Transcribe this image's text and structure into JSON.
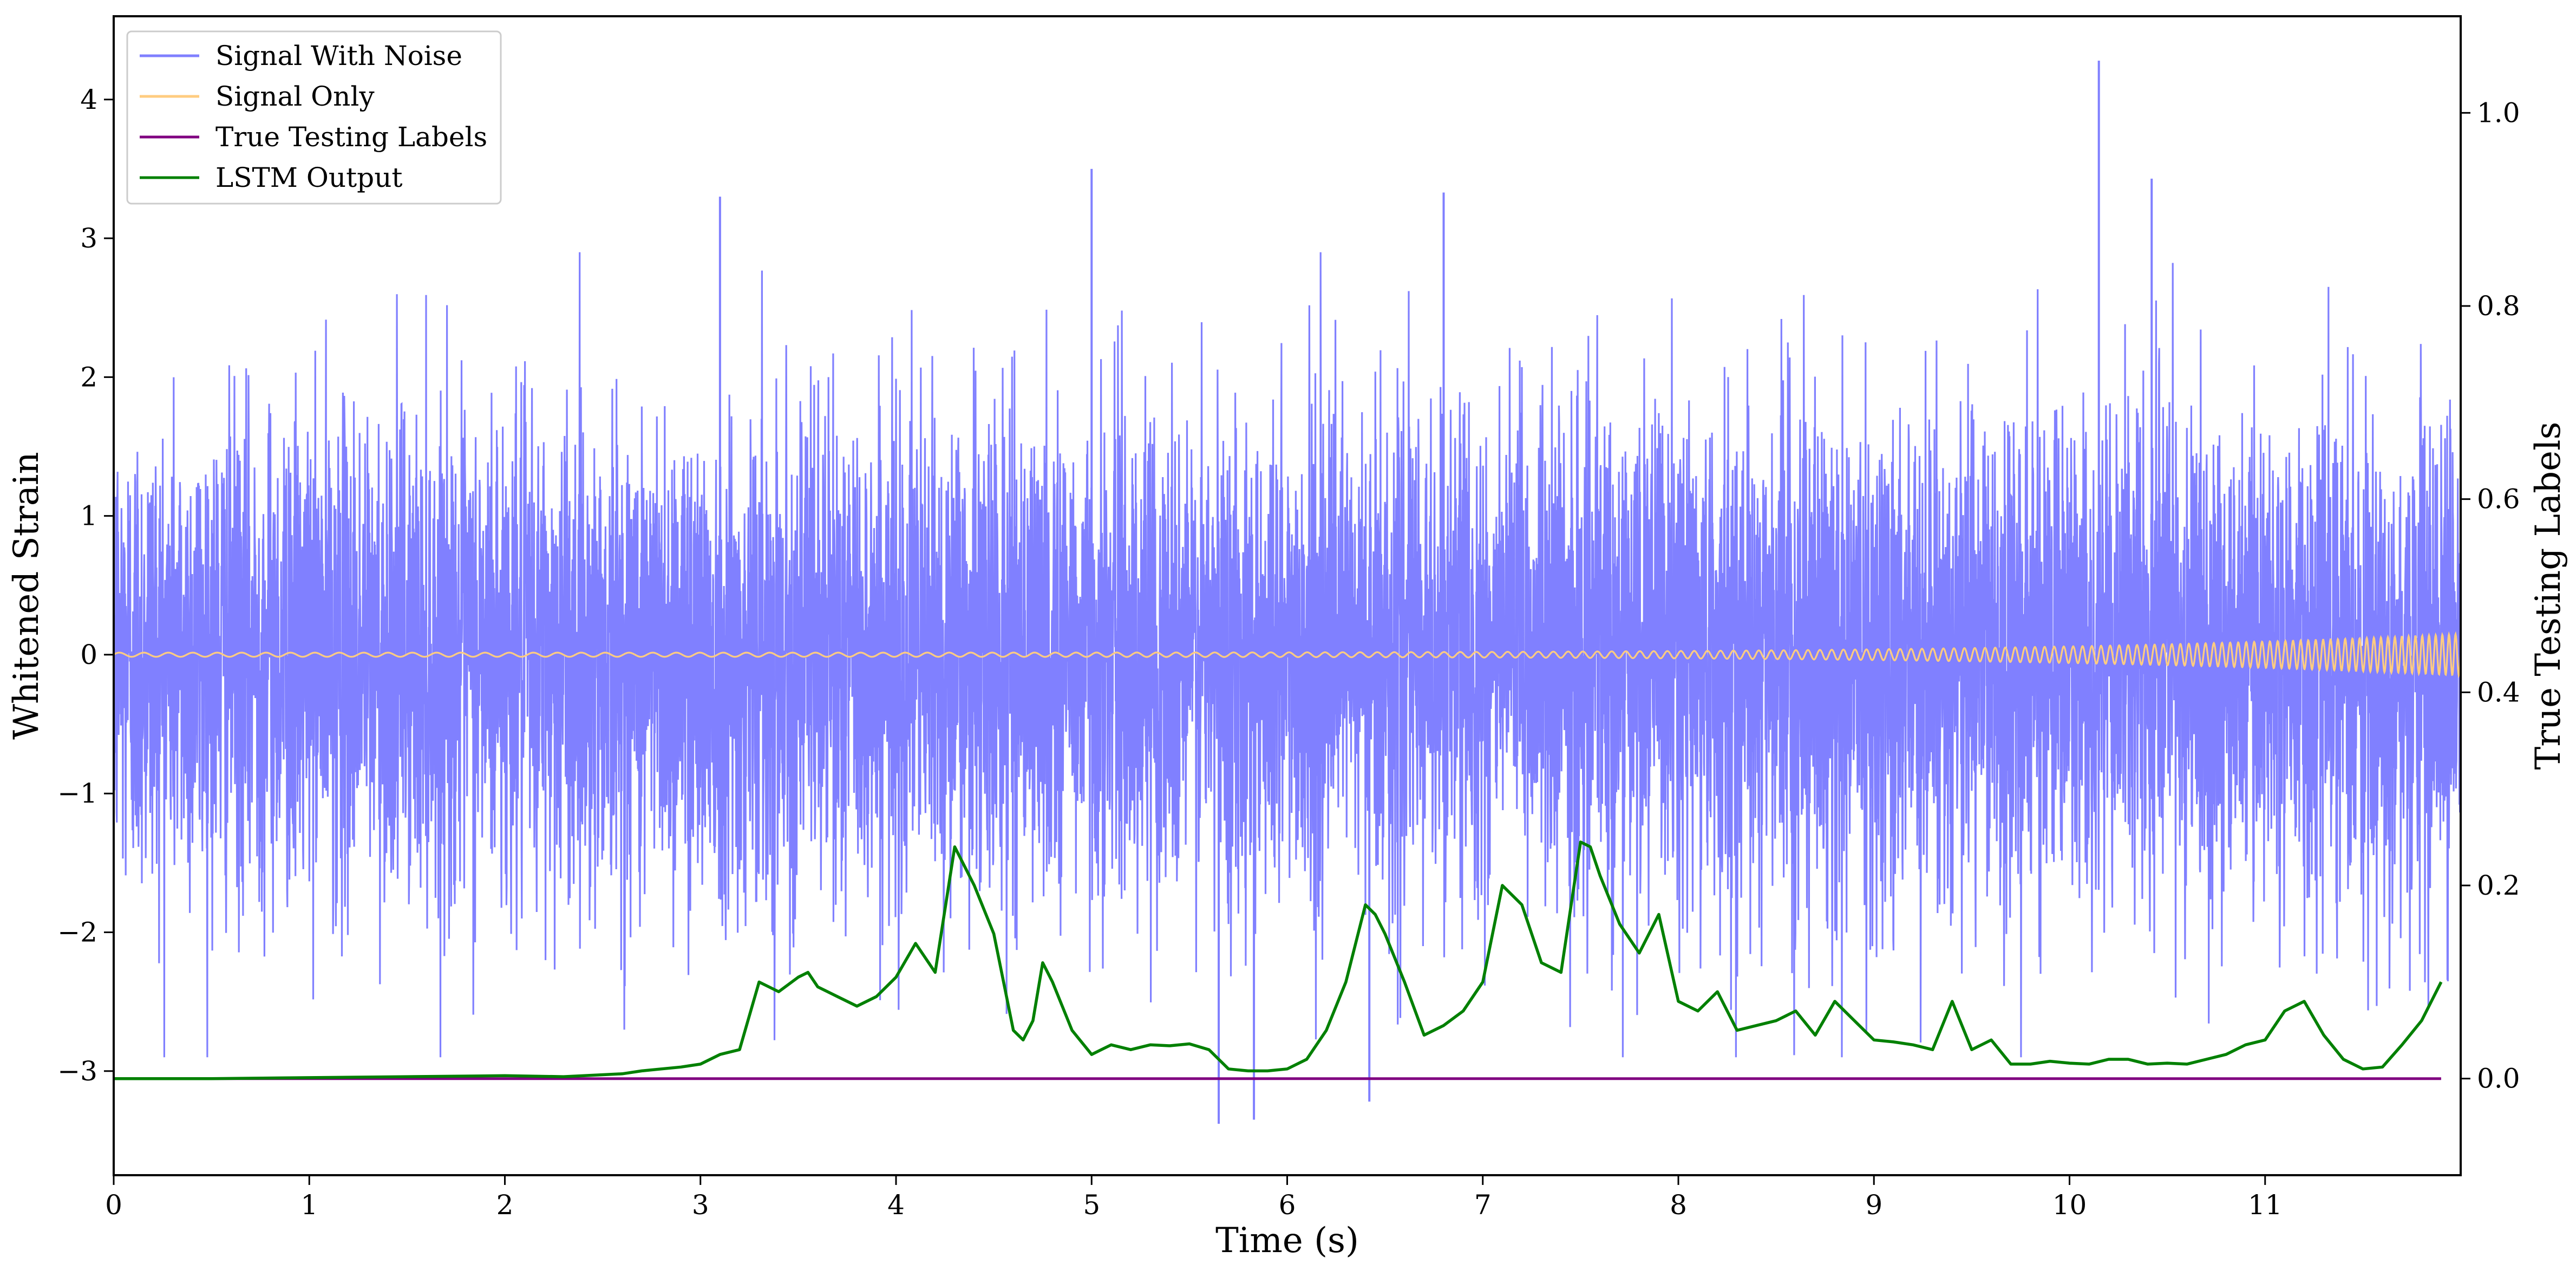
{
  "chart_data": {
    "type": "line",
    "title": "",
    "xlabel": "Time (s)",
    "ylabel_left": "Whitened Strain",
    "ylabel_right": "True Testing Labels",
    "xlim": [
      0,
      12
    ],
    "ylim_left": [
      -3.75,
      4.6
    ],
    "ylim_right": [
      -0.1,
      1.1
    ],
    "x_ticks": [
      0,
      1,
      2,
      3,
      4,
      5,
      6,
      7,
      8,
      9,
      10,
      11
    ],
    "x_tick_labels": [
      "0",
      "1",
      "2",
      "3",
      "4",
      "5",
      "6",
      "7",
      "8",
      "9",
      "10",
      "11"
    ],
    "y_left_ticks": [
      -3,
      -2,
      -1,
      0,
      1,
      2,
      3,
      4
    ],
    "y_left_tick_labels": [
      "−3",
      "−2",
      "−1",
      "0",
      "1",
      "2",
      "3",
      "4"
    ],
    "y_right_ticks": [
      0.0,
      0.2,
      0.4,
      0.6,
      0.8,
      1.0
    ],
    "y_right_tick_labels": [
      "0.0",
      "0.2",
      "0.4",
      "0.6",
      "0.8",
      "1.0"
    ],
    "grid": false,
    "legend_position": "top-left",
    "series": [
      {
        "name": "Signal With Noise",
        "axis": "left",
        "color": "#8080ff",
        "envelope": {
          "typical_amplitude": 1.2,
          "max_peak": 4.28,
          "min_trough": -3.38
        },
        "notable_peaks": [
          {
            "x": 3.1,
            "y": 3.3
          },
          {
            "x": 5.0,
            "y": 3.5
          },
          {
            "x": 6.8,
            "y": 3.33
          },
          {
            "x": 10.15,
            "y": 4.28
          },
          {
            "x": 10.42,
            "y": 3.43
          },
          {
            "x": 5.65,
            "y": -3.38
          },
          {
            "x": 5.83,
            "y": -3.35
          },
          {
            "x": 6.42,
            "y": -3.22
          }
        ]
      },
      {
        "name": "Signal Only",
        "axis": "left",
        "color": "#ffcc80",
        "chirp": {
          "f_start_hz": 8,
          "f_end_hz": 30,
          "amp_start": 0.015,
          "amp_end": 0.15
        }
      },
      {
        "name": "True Testing Labels",
        "axis": "right",
        "color": "#800080",
        "x": [
          0,
          11.9
        ],
        "y": [
          0.0,
          0.0
        ]
      },
      {
        "name": "LSTM Output",
        "axis": "right",
        "color": "#008000",
        "x": [
          0.0,
          0.5,
          1.0,
          1.5,
          2.0,
          2.3,
          2.6,
          2.7,
          2.8,
          2.9,
          3.0,
          3.1,
          3.2,
          3.3,
          3.4,
          3.5,
          3.55,
          3.6,
          3.7,
          3.8,
          3.9,
          4.0,
          4.1,
          4.2,
          4.3,
          4.35,
          4.4,
          4.5,
          4.6,
          4.65,
          4.7,
          4.75,
          4.8,
          4.9,
          5.0,
          5.1,
          5.2,
          5.3,
          5.4,
          5.5,
          5.6,
          5.7,
          5.8,
          5.9,
          6.0,
          6.1,
          6.2,
          6.3,
          6.4,
          6.45,
          6.5,
          6.6,
          6.7,
          6.8,
          6.9,
          7.0,
          7.1,
          7.2,
          7.3,
          7.4,
          7.5,
          7.55,
          7.6,
          7.7,
          7.8,
          7.9,
          8.0,
          8.1,
          8.2,
          8.3,
          8.4,
          8.5,
          8.6,
          8.7,
          8.8,
          8.9,
          9.0,
          9.1,
          9.2,
          9.3,
          9.4,
          9.5,
          9.6,
          9.7,
          9.8,
          9.9,
          10.0,
          10.1,
          10.2,
          10.3,
          10.4,
          10.5,
          10.6,
          10.7,
          10.8,
          10.9,
          11.0,
          11.1,
          11.2,
          11.3,
          11.4,
          11.5,
          11.6,
          11.7,
          11.8,
          11.9
        ],
        "y": [
          0.0,
          0.0,
          0.001,
          0.002,
          0.003,
          0.002,
          0.005,
          0.008,
          0.01,
          0.012,
          0.015,
          0.025,
          0.03,
          0.1,
          0.09,
          0.105,
          0.11,
          0.095,
          0.085,
          0.075,
          0.085,
          0.105,
          0.14,
          0.11,
          0.24,
          0.22,
          0.2,
          0.15,
          0.05,
          0.04,
          0.06,
          0.12,
          0.1,
          0.05,
          0.025,
          0.035,
          0.03,
          0.035,
          0.034,
          0.036,
          0.03,
          0.01,
          0.008,
          0.008,
          0.01,
          0.02,
          0.05,
          0.1,
          0.18,
          0.17,
          0.15,
          0.1,
          0.045,
          0.055,
          0.07,
          0.1,
          0.2,
          0.18,
          0.12,
          0.11,
          0.245,
          0.24,
          0.21,
          0.16,
          0.13,
          0.17,
          0.08,
          0.07,
          0.09,
          0.05,
          0.055,
          0.06,
          0.07,
          0.045,
          0.08,
          0.06,
          0.04,
          0.038,
          0.035,
          0.03,
          0.08,
          0.03,
          0.04,
          0.015,
          0.015,
          0.018,
          0.016,
          0.015,
          0.02,
          0.02,
          0.015,
          0.016,
          0.015,
          0.02,
          0.025,
          0.035,
          0.04,
          0.07,
          0.08,
          0.045,
          0.02,
          0.01,
          0.012,
          0.035,
          0.06,
          0.1
        ]
      }
    ]
  }
}
